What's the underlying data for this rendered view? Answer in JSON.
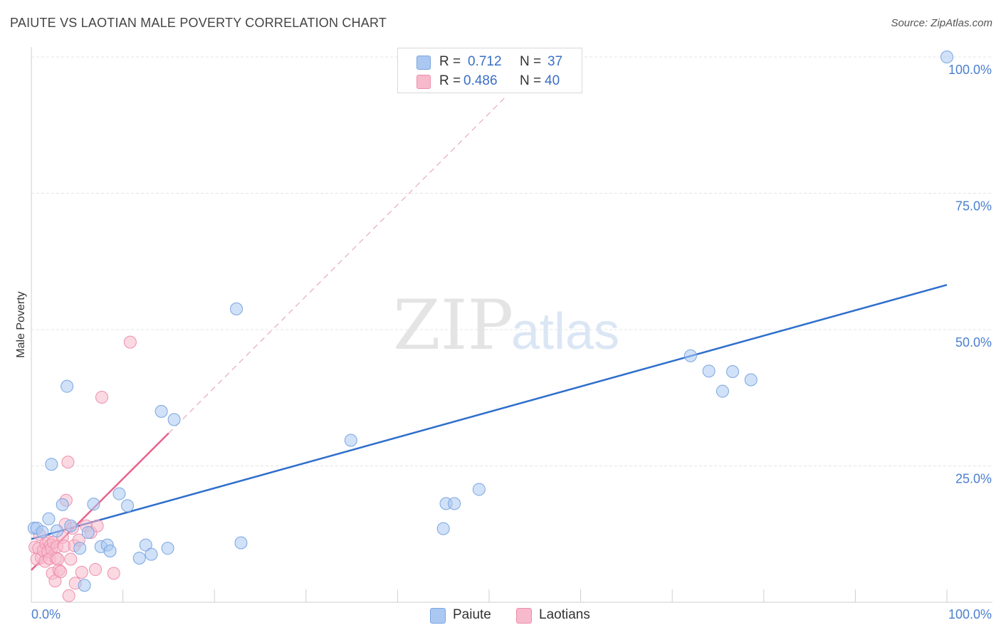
{
  "header": {
    "title": "PAIUTE VS LAOTIAN MALE POVERTY CORRELATION CHART",
    "source": "Source: ZipAtlas.com"
  },
  "watermark": {
    "zip": "ZIP",
    "atlas": "atlas"
  },
  "legend": {
    "r_label": "R =",
    "n_label": "N =",
    "items": [
      {
        "r": "0.712",
        "n": "37"
      },
      {
        "r": "0.486",
        "n": "40"
      }
    ]
  },
  "colors": {
    "paiute_fill": "#aac8f2",
    "paiute_stroke": "#7aa6e0",
    "paiute_line": "#2f6fcc",
    "laotians_fill": "#f7b9cc",
    "laotians_stroke": "#ee8fab",
    "laotians_line": "#e8628a",
    "grid": "#e4e4e4",
    "tick_text": "#4a7fcf"
  },
  "chart_data": {
    "type": "scatter",
    "title": "PAIUTE VS LAOTIAN MALE POVERTY CORRELATION CHART",
    "xlabel": "",
    "ylabel": "Male Poverty",
    "xlim": [
      0,
      100
    ],
    "ylim": [
      0,
      100
    ],
    "x_tick_labels": [
      "0.0%",
      "100.0%"
    ],
    "y_ticks": [
      25,
      50,
      75,
      100
    ],
    "y_tick_labels": [
      "25.0%",
      "50.0%",
      "75.0%",
      "100.0%"
    ],
    "grid": true,
    "legend_position": "top-center",
    "series": [
      {
        "name": "Paiute",
        "r": 0.712,
        "n": 37,
        "trend": {
          "x0": 0,
          "y0": 11.6,
          "x1": 100,
          "y1": 58.2
        },
        "points": [
          [
            0.3,
            13.6
          ],
          [
            0.6,
            13.6
          ],
          [
            1.2,
            12.9
          ],
          [
            1.9,
            15.3
          ],
          [
            2.2,
            25.3
          ],
          [
            2.8,
            13.1
          ],
          [
            3.4,
            17.9
          ],
          [
            3.9,
            39.6
          ],
          [
            4.3,
            14.0
          ],
          [
            5.3,
            9.9
          ],
          [
            5.8,
            3.1
          ],
          [
            6.2,
            12.8
          ],
          [
            6.8,
            18.0
          ],
          [
            7.6,
            10.2
          ],
          [
            8.3,
            10.5
          ],
          [
            8.6,
            9.4
          ],
          [
            9.6,
            19.9
          ],
          [
            10.5,
            17.7
          ],
          [
            11.8,
            8.1
          ],
          [
            12.5,
            10.5
          ],
          [
            13.1,
            8.8
          ],
          [
            14.2,
            35.0
          ],
          [
            14.9,
            9.9
          ],
          [
            15.6,
            33.5
          ],
          [
            22.4,
            53.8
          ],
          [
            22.9,
            10.9
          ],
          [
            34.9,
            29.7
          ],
          [
            45.0,
            13.5
          ],
          [
            45.3,
            18.1
          ],
          [
            46.2,
            18.1
          ],
          [
            48.9,
            20.7
          ],
          [
            72.0,
            45.2
          ],
          [
            74.0,
            42.4
          ],
          [
            75.5,
            38.7
          ],
          [
            76.6,
            42.3
          ],
          [
            78.6,
            40.8
          ],
          [
            100.0,
            100.0
          ]
        ]
      },
      {
        "name": "Laotians",
        "r": 0.486,
        "n": 40,
        "trend": {
          "x0": 0,
          "y0": 5.9,
          "x1": 15.0,
          "y1": 31.0
        },
        "trend_extension": {
          "x1": 52.0,
          "y1": 93.0
        },
        "points": [
          [
            0.4,
            10.1
          ],
          [
            0.6,
            7.9
          ],
          [
            0.8,
            9.9
          ],
          [
            0.9,
            12.4
          ],
          [
            1.1,
            8.2
          ],
          [
            1.3,
            9.5
          ],
          [
            1.5,
            7.5
          ],
          [
            1.6,
            10.8
          ],
          [
            1.8,
            9.3
          ],
          [
            1.9,
            11.1
          ],
          [
            2.0,
            8.0
          ],
          [
            2.1,
            10.5
          ],
          [
            2.2,
            9.8
          ],
          [
            2.3,
            5.3
          ],
          [
            2.4,
            11.0
          ],
          [
            2.6,
            3.9
          ],
          [
            2.7,
            8.1
          ],
          [
            2.8,
            10.2
          ],
          [
            3.0,
            5.9
          ],
          [
            3.2,
            5.6
          ],
          [
            3.4,
            11.9
          ],
          [
            3.6,
            10.3
          ],
          [
            3.7,
            14.3
          ],
          [
            3.8,
            18.7
          ],
          [
            4.0,
            25.7
          ],
          [
            4.1,
            1.2
          ],
          [
            4.3,
            7.9
          ],
          [
            4.5,
            13.6
          ],
          [
            4.7,
            10.4
          ],
          [
            4.8,
            3.5
          ],
          [
            5.2,
            11.4
          ],
          [
            5.5,
            5.5
          ],
          [
            6.0,
            14.0
          ],
          [
            6.5,
            12.8
          ],
          [
            7.0,
            6.0
          ],
          [
            7.2,
            14.0
          ],
          [
            7.7,
            37.6
          ],
          [
            9.0,
            5.3
          ],
          [
            10.8,
            47.7
          ],
          [
            2.9,
            7.9
          ]
        ]
      }
    ]
  }
}
